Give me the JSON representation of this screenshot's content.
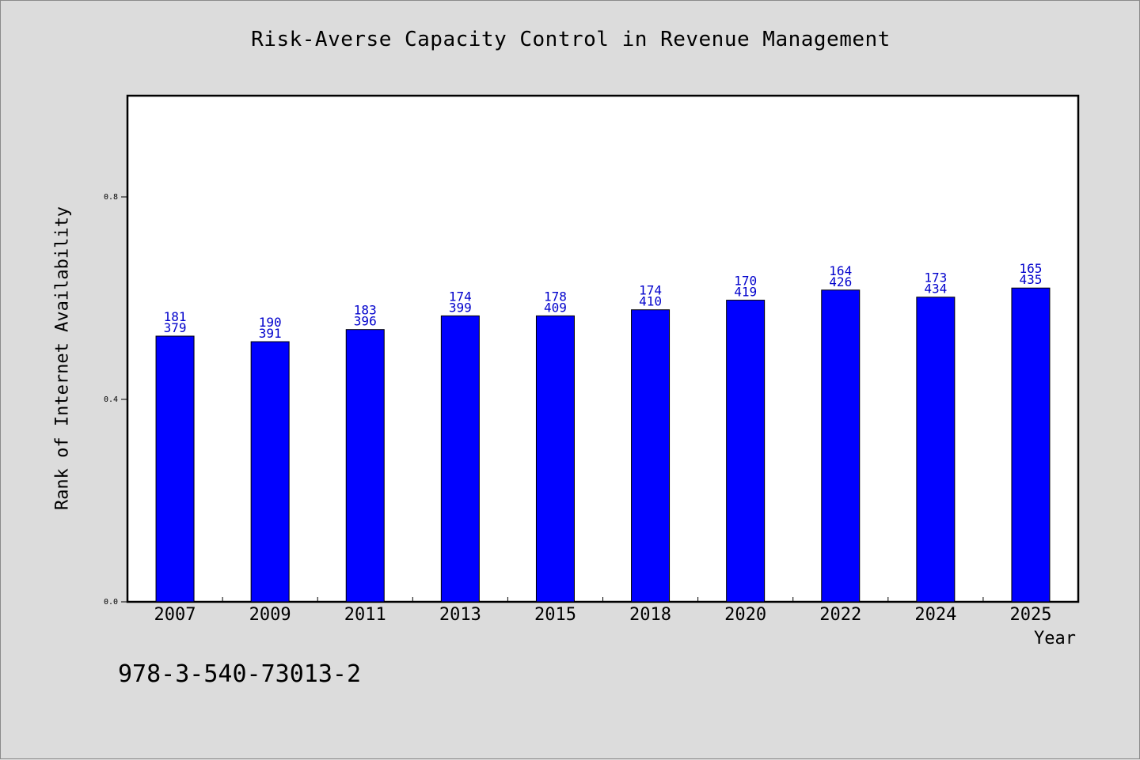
{
  "colors": {
    "bar": "#0000ff",
    "label": "#0000cc",
    "background": "#dcdcdc",
    "plot": "#ffffff"
  },
  "isbn": "978-3-540-73013-2",
  "chart_data": {
    "type": "bar",
    "title": "Risk-Averse Capacity Control in Revenue Management",
    "xlabel": "Year",
    "ylabel": "Rank of Internet Availability",
    "ylim": [
      0.0,
      1.0
    ],
    "yticks": [
      "0.0",
      "0.4",
      "0.8"
    ],
    "grid": false,
    "categories": [
      "2007",
      "2009",
      "2011",
      "2013",
      "2015",
      "2018",
      "2020",
      "2022",
      "2024",
      "2025"
    ],
    "values": [
      0.525,
      0.514,
      0.538,
      0.565,
      0.565,
      0.577,
      0.596,
      0.616,
      0.602,
      0.62
    ],
    "bar_labels_top": [
      "181",
      "190",
      "183",
      "174",
      "178",
      "174",
      "170",
      "164",
      "173",
      "165"
    ],
    "bar_labels_bottom": [
      "379",
      "391",
      "396",
      "399",
      "409",
      "410",
      "419",
      "426",
      "434",
      "435"
    ]
  }
}
